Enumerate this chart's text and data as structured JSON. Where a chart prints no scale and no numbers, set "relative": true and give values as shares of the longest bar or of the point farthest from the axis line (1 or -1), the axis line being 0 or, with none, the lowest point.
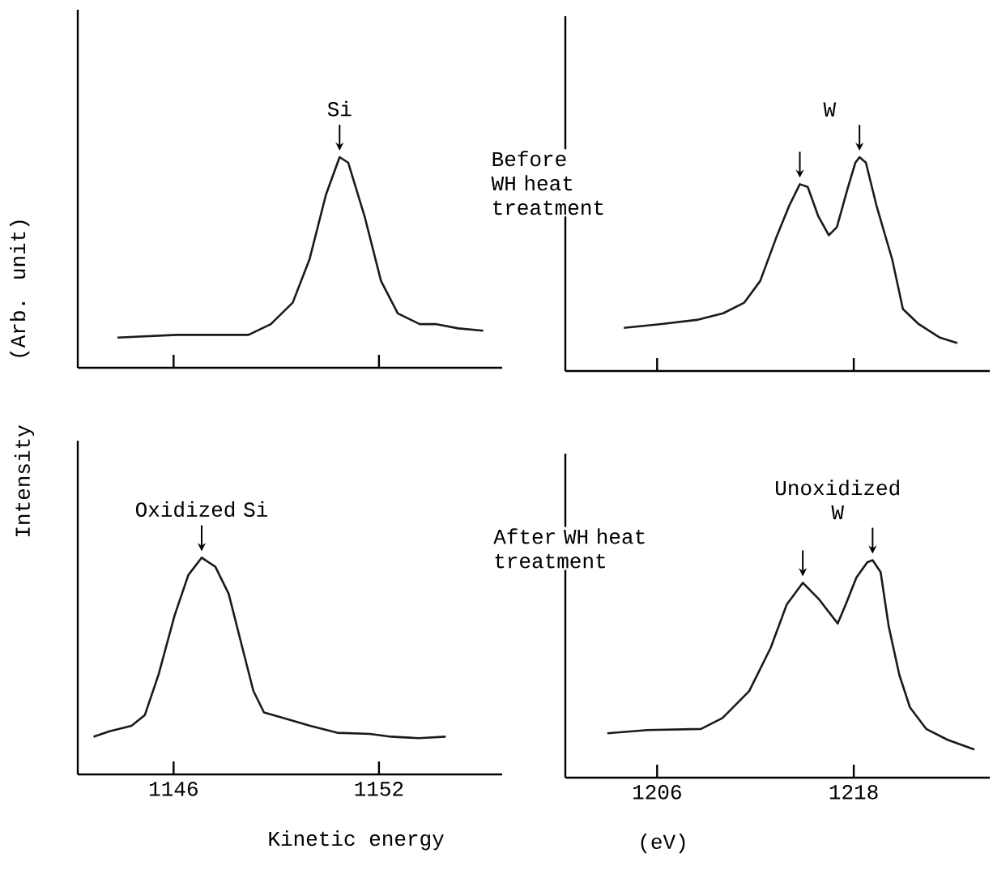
{
  "chart_data": [
    {
      "type": "line",
      "relative": true,
      "ylabel": "(Arb. unit)",
      "xlim": [
        1143.2,
        1155.6
      ],
      "xticks": [
        1146,
        1152
      ],
      "tick_labels": false,
      "annotations": [
        "Si"
      ],
      "x": [
        1144.36,
        1146.1,
        1148.19,
        1148.84,
        1149.48,
        1149.97,
        1150.45,
        1150.85,
        1151.1,
        1151.58,
        1152.06,
        1152.55,
        1153.19,
        1153.68,
        1154.32,
        1155.05
      ],
      "series": [
        {
          "color": "#1a1a1a",
          "values": [
            0.143,
            0.156,
            0.156,
            0.207,
            0.309,
            0.514,
            0.821,
            1.0,
            0.974,
            0.719,
            0.412,
            0.258,
            0.207,
            0.207,
            0.187,
            0.176
          ]
        }
      ]
    },
    {
      "type": "line",
      "relative": true,
      "xlim": [
        1200.4,
        1226.3
      ],
      "xticks": [
        1206,
        1218
      ],
      "tick_labels": false,
      "annotations": [
        "W",
        "Before WH heat treatment"
      ],
      "x": [
        1203.97,
        1206.16,
        1208.42,
        1210.03,
        1211.32,
        1212.29,
        1213.26,
        1214.06,
        1214.71,
        1215.19,
        1215.84,
        1216.48,
        1216.97,
        1217.61,
        1218.1,
        1218.35,
        1218.74,
        1219.39,
        1220.35,
        1221.0,
        1221.97,
        1223.26,
        1224.32
      ],
      "series": [
        {
          "color": "#1a1a1a",
          "values": [
            0.202,
            0.219,
            0.239,
            0.27,
            0.32,
            0.421,
            0.622,
            0.773,
            0.874,
            0.861,
            0.723,
            0.635,
            0.673,
            0.849,
            0.975,
            1.0,
            0.975,
            0.773,
            0.521,
            0.29,
            0.219,
            0.156,
            0.131
          ]
        }
      ]
    },
    {
      "type": "line",
      "relative": true,
      "ylabel": "Intensity",
      "xlabel": "Kinetic energy",
      "xlim": [
        1143.2,
        1155.6
      ],
      "xticks": [
        1146,
        1152
      ],
      "tick_labels": "x",
      "annotations": [
        "Oxidized Si"
      ],
      "x": [
        1143.66,
        1144.13,
        1144.77,
        1145.16,
        1145.56,
        1146.03,
        1146.43,
        1146.82,
        1147.22,
        1147.61,
        1148.01,
        1148.33,
        1148.64,
        1149.2,
        1149.99,
        1150.78,
        1151.73,
        1152.36,
        1153.16,
        1153.95
      ],
      "series": [
        {
          "color": "#1a1a1a",
          "values": [
            0.174,
            0.199,
            0.224,
            0.274,
            0.46,
            0.734,
            0.92,
            1.0,
            0.958,
            0.833,
            0.584,
            0.386,
            0.286,
            0.261,
            0.224,
            0.192,
            0.187,
            0.174,
            0.167,
            0.174
          ]
        }
      ]
    },
    {
      "type": "line",
      "relative": true,
      "xlabel": "(eV)",
      "xlim": [
        1200.4,
        1226.3
      ],
      "xticks": [
        1206,
        1218
      ],
      "tick_labels": "x",
      "annotations": [
        "Unoxidized W",
        "After WH heat treatment"
      ],
      "x": [
        1202.96,
        1205.41,
        1208.68,
        1209.99,
        1211.62,
        1212.93,
        1213.91,
        1214.89,
        1215.87,
        1217.02,
        1217.51,
        1218.16,
        1218.82,
        1219.15,
        1219.64,
        1220.13,
        1220.78,
        1221.43,
        1222.42,
        1223.72,
        1225.36
      ],
      "series": [
        {
          "color": "#1a1a1a",
          "values": [
            0.204,
            0.219,
            0.224,
            0.274,
            0.398,
            0.597,
            0.796,
            0.896,
            0.821,
            0.709,
            0.796,
            0.92,
            0.99,
            1.0,
            0.945,
            0.697,
            0.473,
            0.323,
            0.224,
            0.174,
            0.129
          ]
        }
      ]
    }
  ]
}
